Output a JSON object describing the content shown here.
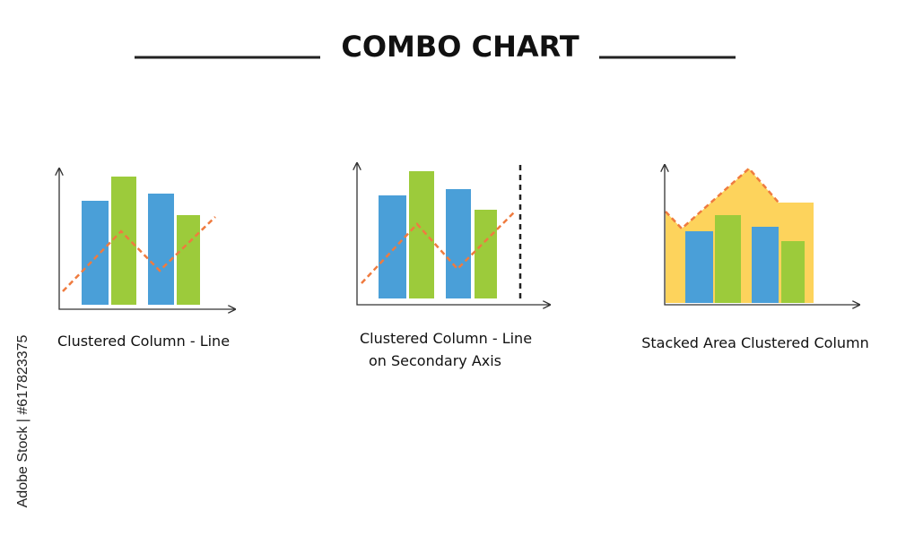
{
  "header": {
    "title": "COMBO CHART"
  },
  "items": [
    {
      "label": [
        "Clustered Column - Line"
      ]
    },
    {
      "label": [
        "Clustered Column - Line",
        "on Secondary Axis"
      ]
    },
    {
      "label": [
        "Stacked Area Clustered Column"
      ]
    }
  ],
  "watermark": "Adobe Stock | #617823375"
}
